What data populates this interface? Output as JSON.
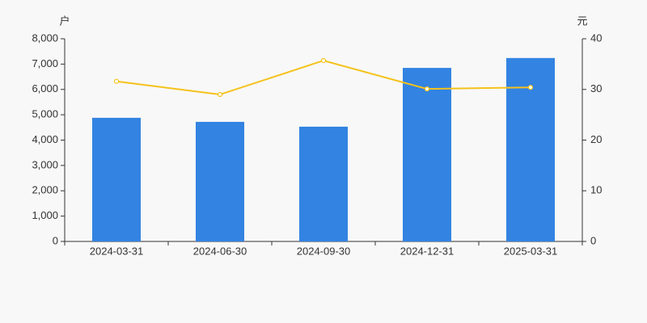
{
  "chart_data": {
    "type": "bar-line",
    "y_label": "户",
    "y2_label": "元",
    "categories": [
      "2024-03-31",
      "2024-06-30",
      "2024-09-30",
      "2024-12-31",
      "2025-03-31"
    ],
    "series": [
      {
        "type": "bar",
        "color": "#3383e2",
        "values": [
          4880,
          4720,
          4530,
          6850,
          7240
        ]
      },
      {
        "type": "line",
        "axis": "y2",
        "color": "#f5c21b",
        "values": [
          31.6,
          29.0,
          35.7,
          30.1,
          30.4
        ]
      }
    ],
    "ylim": [
      0,
      8000
    ],
    "yticks": [
      0,
      {
        "value": 1000,
        "label": "1,000"
      },
      {
        "value": 2000,
        "label": "2,000"
      },
      {
        "value": 3000,
        "label": "3,000"
      },
      {
        "value": 4000,
        "label": "4,000"
      },
      {
        "value": 5000,
        "label": "5,000"
      },
      {
        "value": 6000,
        "label": "6,000"
      },
      {
        "value": 7000,
        "label": "7,000"
      },
      {
        "value": 8000,
        "label": "8,000"
      }
    ],
    "y2lim": [
      0,
      40
    ],
    "y2ticks": [
      0,
      10,
      20,
      30,
      40
    ]
  }
}
